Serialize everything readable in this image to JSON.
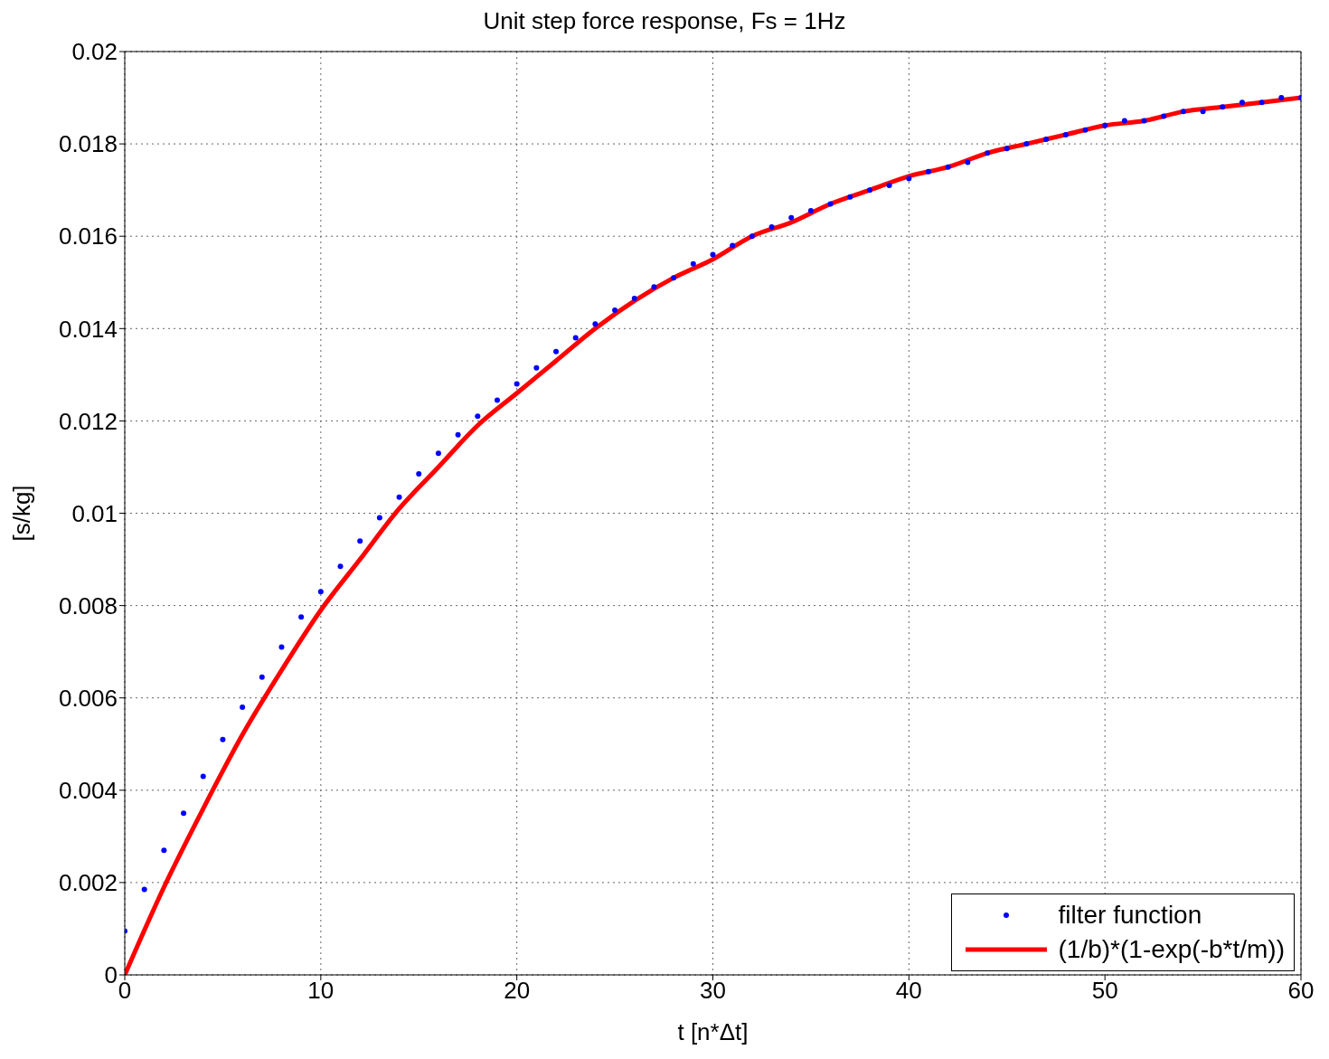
{
  "chart_data": {
    "type": "scatter",
    "title": "Unit step force response, Fs = 1Hz",
    "xlabel": "t [n*Δt]",
    "ylabel": "[s/kg]",
    "xlim": [
      0,
      60
    ],
    "xticks": [
      0,
      10,
      20,
      30,
      40,
      50,
      60
    ],
    "ylim": [
      0,
      0.02
    ],
    "yticks": [
      0,
      0.002,
      0.004,
      0.006,
      0.008,
      0.01,
      0.012,
      0.014,
      0.016,
      0.018,
      0.02
    ],
    "grid": true,
    "legend": "bottom right",
    "series": [
      {
        "name": "filter function",
        "type": "scatter",
        "marker": "circle",
        "color": "#0000ff",
        "x": [
          0,
          1,
          2,
          3,
          4,
          5,
          6,
          7,
          8,
          9,
          10,
          11,
          12,
          13,
          14,
          15,
          16,
          17,
          18,
          19,
          20,
          21,
          22,
          23,
          24,
          25,
          26,
          27,
          28,
          29,
          30,
          31,
          32,
          33,
          34,
          35,
          36,
          37,
          38,
          39,
          40,
          41,
          42,
          43,
          44,
          45,
          46,
          47,
          48,
          49,
          50,
          51,
          52,
          53,
          54,
          55,
          56,
          57,
          58,
          59,
          60
        ],
        "values": [
          0.00095,
          0.00185,
          0.0027,
          0.0035,
          0.0043,
          0.0051,
          0.0058,
          0.00645,
          0.0071,
          0.00775,
          0.0083,
          0.00885,
          0.0094,
          0.0099,
          0.01035,
          0.01085,
          0.0113,
          0.0117,
          0.0121,
          0.01245,
          0.0128,
          0.01315,
          0.0135,
          0.0138,
          0.0141,
          0.0144,
          0.01465,
          0.0149,
          0.0151,
          0.0154,
          0.0156,
          0.0158,
          0.016,
          0.0162,
          0.0164,
          0.01655,
          0.0167,
          0.01685,
          0.017,
          0.0171,
          0.01725,
          0.0174,
          0.0175,
          0.0176,
          0.0178,
          0.0179,
          0.018,
          0.0181,
          0.0182,
          0.0183,
          0.0184,
          0.0185,
          0.0185,
          0.0186,
          0.0187,
          0.0187,
          0.0188,
          0.0189,
          0.0189,
          0.019,
          0.019
        ]
      },
      {
        "name": "(1/b)*(1-exp(-b*t/m))",
        "type": "line",
        "marker": "none",
        "line_style": "solid",
        "color": "#ff0000",
        "x": [
          0,
          2,
          4,
          6,
          8,
          10,
          12,
          14,
          16,
          18,
          20,
          22,
          24,
          26,
          28,
          30,
          32,
          34,
          36,
          38,
          40,
          42,
          44,
          46,
          48,
          50,
          52,
          54,
          56,
          58,
          60
        ],
        "values": [
          0,
          0.0019,
          0.0036,
          0.0052,
          0.0066,
          0.0079,
          0.009,
          0.0101,
          0.011,
          0.0119,
          0.0126,
          0.0133,
          0.014,
          0.0146,
          0.0151,
          0.0155,
          0.016,
          0.0163,
          0.0167,
          0.017,
          0.0173,
          0.0175,
          0.0178,
          0.018,
          0.0182,
          0.0184,
          0.0185,
          0.0187,
          0.0188,
          0.0189,
          0.019
        ]
      }
    ]
  }
}
